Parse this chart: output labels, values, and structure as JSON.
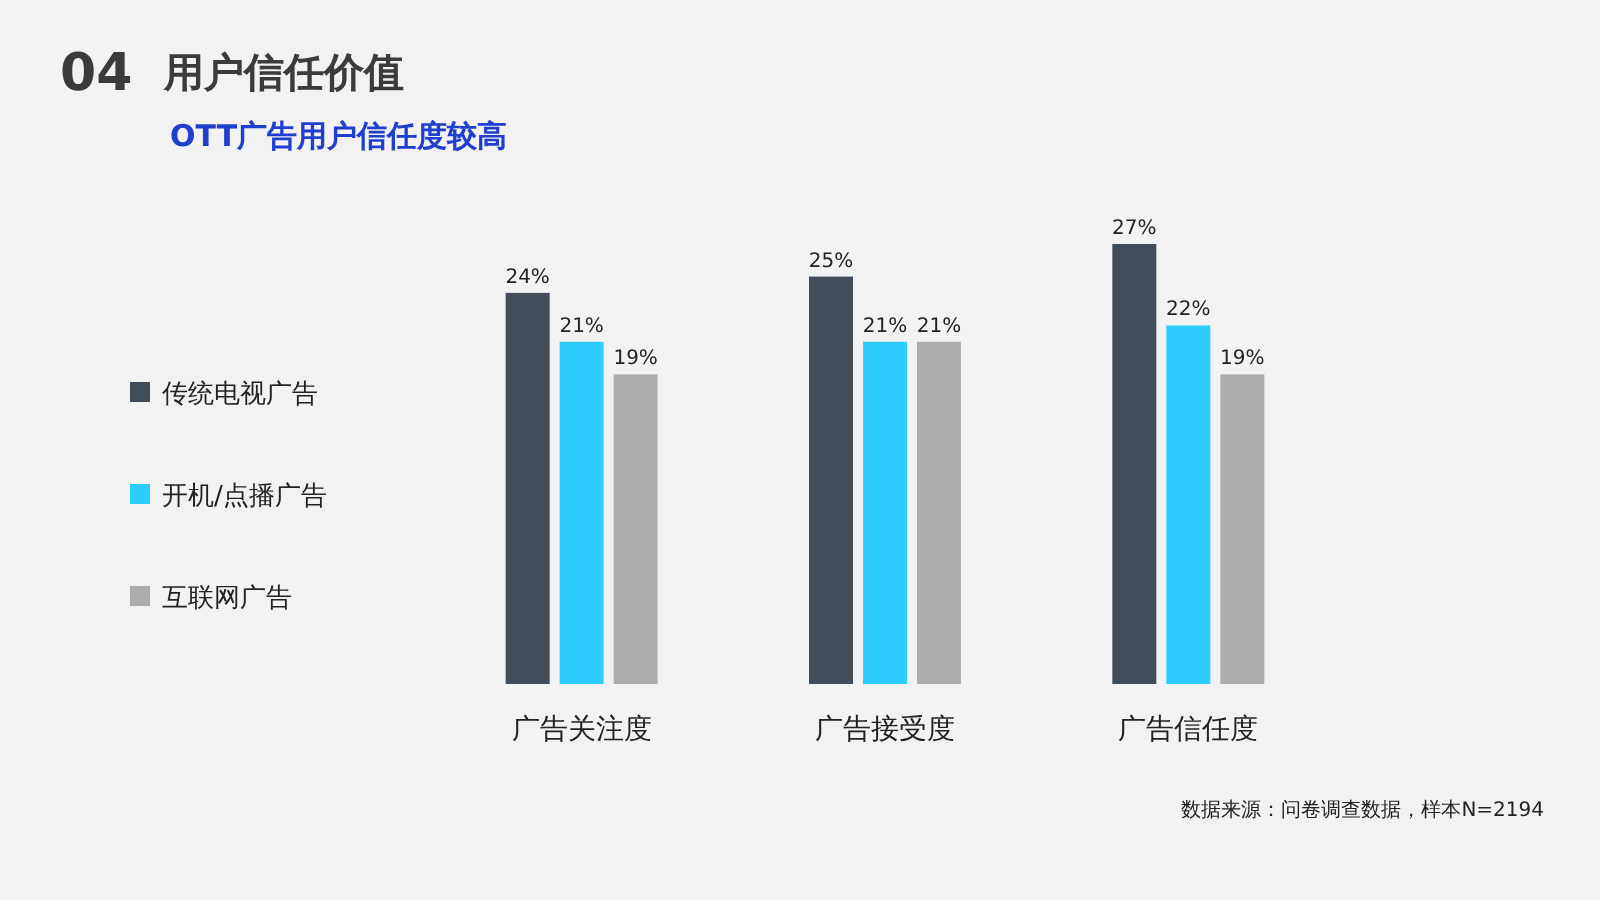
{
  "chart_data": {
    "type": "bar",
    "title": "用户信任价值",
    "subtitle": "OTT广告用户信任度较高",
    "categories": [
      "广告关注度",
      "广告接受度",
      "广告信任度"
    ],
    "series": [
      {
        "name": "传统电视广告",
        "color": "#414d58",
        "values": [
          24,
          25,
          27
        ],
        "value_labels": [
          "24%",
          "25%",
          "27%"
        ]
      },
      {
        "name": "开机/点播广告",
        "color": "#2ecdff",
        "values": [
          21,
          21,
          22
        ],
        "value_labels": [
          "21%",
          "21%",
          "22%"
        ]
      },
      {
        "name": "互联网广告",
        "color": "#adadad",
        "values": [
          19,
          21,
          19
        ],
        "value_labels": [
          "19%",
          "21%",
          "19%"
        ]
      }
    ],
    "legend": "left",
    "annotations": [
      "04",
      "数据来源：问卷调查数据，样本N=2194"
    ]
  }
}
